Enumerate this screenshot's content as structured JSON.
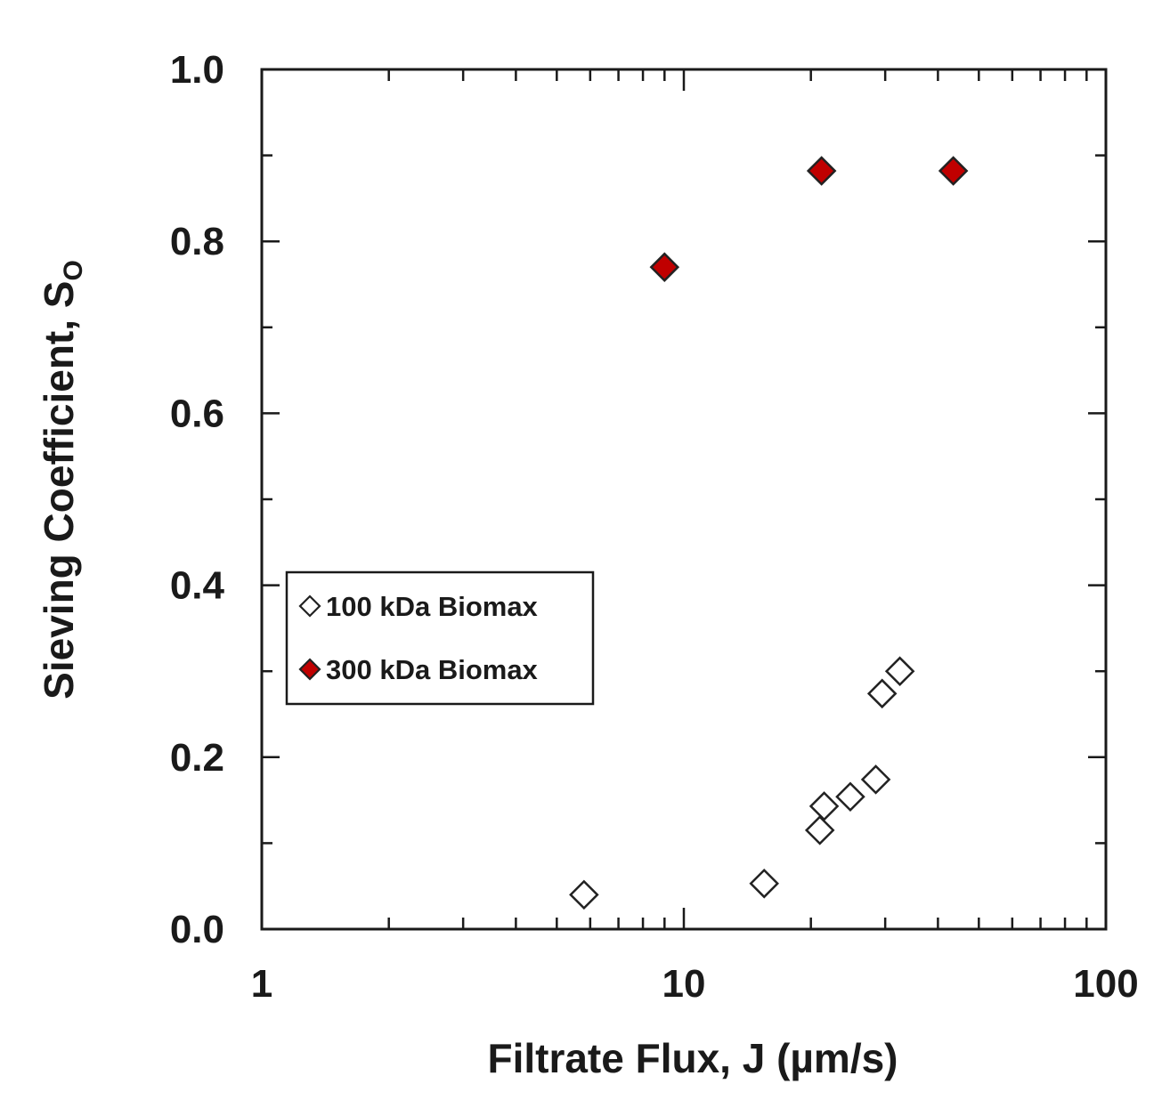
{
  "chart_data": {
    "type": "scatter",
    "x_scale": "log",
    "xlim": [
      1,
      100
    ],
    "ylim": [
      0,
      1.0
    ],
    "xlabel": "Filtrate Flux, J (µm/s)",
    "ylabel_main": "Sieving Coefficient, S",
    "ylabel_sub": "O",
    "x_tick_labels": [
      {
        "value": 1,
        "label": "1"
      },
      {
        "value": 10,
        "label": "10"
      },
      {
        "value": 100,
        "label": "100"
      }
    ],
    "y_tick_labels": [
      {
        "value": 0.0,
        "label": "0.0"
      },
      {
        "value": 0.2,
        "label": "0.2"
      },
      {
        "value": 0.4,
        "label": "0.4"
      },
      {
        "value": 0.6,
        "label": "0.6"
      },
      {
        "value": 0.8,
        "label": "0.8"
      },
      {
        "value": 1.0,
        "label": "1.0"
      }
    ],
    "legend_position": "middle-left",
    "grid": false,
    "series": [
      {
        "name": "100 kDa Biomax",
        "marker": "diamond-open",
        "color": "#ffffff",
        "edge_color": "#222222",
        "points": [
          {
            "x": 5.8,
            "y": 0.04
          },
          {
            "x": 15.5,
            "y": 0.053
          },
          {
            "x": 21.0,
            "y": 0.115
          },
          {
            "x": 21.5,
            "y": 0.143
          },
          {
            "x": 24.8,
            "y": 0.154
          },
          {
            "x": 28.5,
            "y": 0.174
          },
          {
            "x": 29.5,
            "y": 0.274
          },
          {
            "x": 32.5,
            "y": 0.3
          }
        ]
      },
      {
        "name": "300 kDa Biomax",
        "marker": "diamond-filled",
        "color": "#c00000",
        "edge_color": "#222222",
        "points": [
          {
            "x": 9.0,
            "y": 0.77
          },
          {
            "x": 21.2,
            "y": 0.882
          },
          {
            "x": 43.5,
            "y": 0.882
          }
        ]
      }
    ]
  }
}
